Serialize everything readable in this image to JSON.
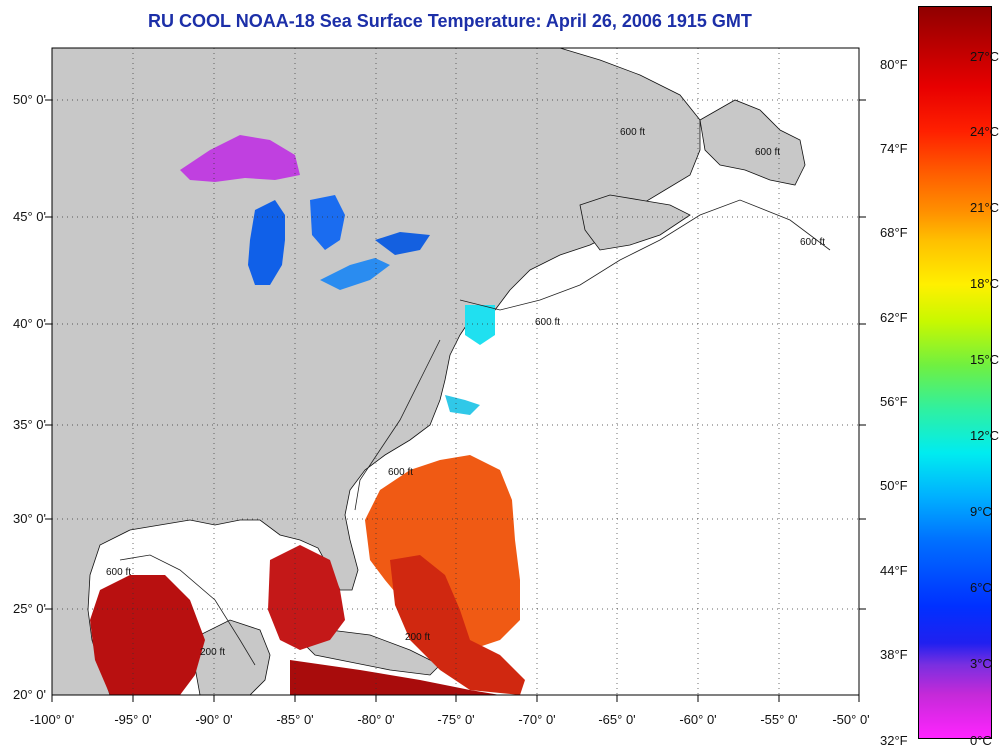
{
  "title": "RU COOL  NOAA-18  Sea Surface Temperature:  April 26, 2006 1915 GMT",
  "latitude_labels": [
    "50° 0'",
    "45° 0'",
    "40° 0'",
    "35° 0'",
    "30° 0'",
    "25° 0'",
    "20° 0'"
  ],
  "longitude_labels": [
    "-100° 0'",
    "-95° 0'",
    "-90° 0'",
    "-85° 0'",
    "-80° 0'",
    "-75° 0'",
    "-70° 0'",
    "-65° 0'",
    "-60° 0'",
    "-55° 0'",
    "-50° 0'"
  ],
  "colorbar": {
    "fahrenheit_labels": [
      "80°F",
      "74°F",
      "68°F",
      "62°F",
      "56°F",
      "50°F",
      "44°F",
      "38°F",
      "32°F"
    ],
    "celsius_labels": [
      "27°C",
      "24°C",
      "21°C",
      "18°C",
      "15°C",
      "12°C",
      "9°C",
      "6°C",
      "3°C",
      "0°C"
    ]
  },
  "contour_labels": [
    "600 ft",
    "200 ft",
    "600 ft",
    "600 ft",
    "600 ft",
    "600 ft",
    "600 ft",
    "200 ft"
  ],
  "colors": {
    "title": "#1c2fa8",
    "land": "#c8c8c8",
    "ocean_no_data": "#ffffff",
    "gulf_warm": "#b81010",
    "atlantic_warm": "#f05a14",
    "lake_superior": "#c040e0",
    "lake_michigan": "#1060e8",
    "coastal_cool": "#20e0f0"
  }
}
